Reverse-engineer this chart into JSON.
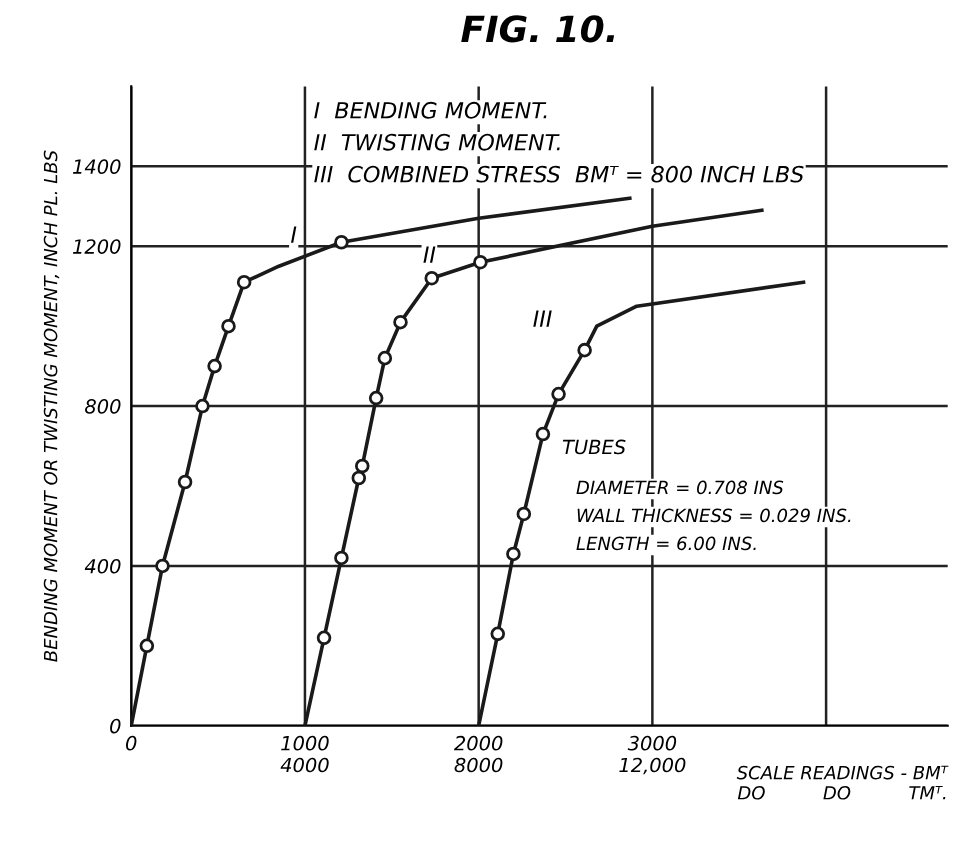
{
  "chart_data": {
    "type": "line",
    "title": "FIG. 10.",
    "xlabel": "SCALE READINGS - BMᵀ\nDO          DO          TMᵀ.",
    "ylabel": "BENDING MOMENT OR TWISTING MOMENT, INCH PL. LBS",
    "xlim": [
      0,
      4700
    ],
    "ylim": [
      0,
      1600
    ],
    "xticks": [
      0,
      1000,
      2000,
      3000,
      {
        "value": 4000,
        "label": null
      }
    ],
    "x2lim": [
      0,
      18800
    ],
    "x2ticks": [
      4000,
      8000,
      {
        "value": 12000,
        "label": "12,000"
      }
    ],
    "yticks": [
      0,
      400,
      800,
      1200,
      1400
    ],
    "grid": true,
    "series": [
      {
        "name": "I",
        "color": "#1a1a1a",
        "x": [
          0,
          90,
          180,
          310,
          410,
          480,
          560,
          650,
          850,
          1210,
          2000,
          2870
        ],
        "values": [
          0,
          200,
          400,
          610,
          800,
          900,
          1000,
          1110,
          1150,
          1210,
          1270,
          1320
        ]
      },
      {
        "color": "#1a1a1a",
        "type": "scatter",
        "marker": "circle",
        "x": [
          90,
          180,
          310,
          410,
          480,
          560,
          650,
          1210
        ],
        "values": [
          200,
          400,
          610,
          800,
          900,
          1000,
          1110,
          1210
        ]
      },
      {
        "name": "II",
        "color": "#1a1a1a",
        "x": [
          1000,
          1110,
          1210,
          1310,
          1330,
          1410,
          1460,
          1550,
          1730,
          2010,
          3000,
          3630
        ],
        "values": [
          0,
          220,
          420,
          620,
          650,
          820,
          920,
          1010,
          1120,
          1160,
          1250,
          1290
        ]
      },
      {
        "color": "#1a1a1a",
        "type": "scatter",
        "marker": "circle",
        "x": [
          1110,
          1210,
          1310,
          1330,
          1410,
          1460,
          1550,
          1730,
          2010
        ],
        "values": [
          220,
          420,
          620,
          650,
          820,
          920,
          1010,
          1120,
          1160
        ]
      },
      {
        "name": "III",
        "color": "#1a1a1a",
        "x": [
          2000,
          2110,
          2200,
          2260,
          2370,
          2460,
          2610,
          2680,
          2910,
          3870
        ],
        "values": [
          0,
          230,
          430,
          530,
          730,
          830,
          940,
          1000,
          1050,
          1110
        ]
      },
      {
        "color": "#1a1a1a",
        "type": "scatter",
        "marker": "circle",
        "x": [
          2110,
          2200,
          2260,
          2370,
          2460,
          2610
        ],
        "values": [
          230,
          430,
          530,
          730,
          830,
          940
        ]
      }
    ],
    "annotations": [
      "I  BENDING MOMENT.",
      "II  TWISTING MOMENT.",
      "III  COMBINED STRESS  BMᵀ = 800 INCH LBS",
      "TUBES",
      "DIAMETER = 0.708 INS",
      "WALL THICKNESS = 0.029 INS.",
      "LENGTH = 6.00 INS."
    ]
  }
}
